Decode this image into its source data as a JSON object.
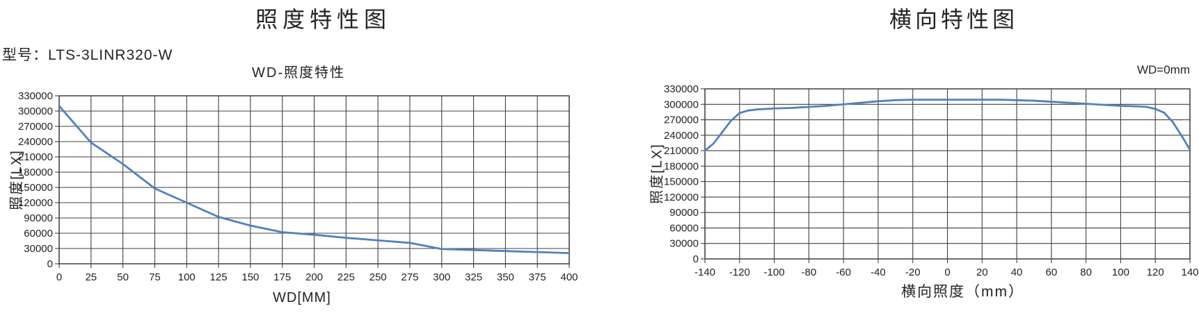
{
  "colors": {
    "curve": "#4f81bd",
    "grid": "#3f3f3f",
    "text": "#262220",
    "background": "#ffffff"
  },
  "left_chart": {
    "title": "照度特性图",
    "model_label": "型号：LTS-3LINR320-W"
  },
  "right_chart": {
    "title": "横向特性图"
  },
  "chart_data": [
    {
      "id": "wd-illuminance",
      "type": "line",
      "title": "WD-照度特性",
      "xlabel": "WD[MM]",
      "ylabel": "照度[LX]",
      "xlim": [
        0,
        400
      ],
      "ylim": [
        0,
        330000
      ],
      "grid": true,
      "legend": "none",
      "x_ticks": [
        0,
        25,
        50,
        75,
        100,
        125,
        150,
        175,
        200,
        225,
        250,
        275,
        300,
        325,
        350,
        375,
        400
      ],
      "y_ticks": [
        0,
        30000,
        60000,
        90000,
        120000,
        150000,
        180000,
        210000,
        240000,
        270000,
        300000,
        330000
      ],
      "x": [
        0,
        25,
        50,
        75,
        100,
        125,
        150,
        175,
        200,
        225,
        250,
        275,
        300,
        325,
        350,
        375,
        400
      ],
      "y": [
        310000,
        238000,
        196000,
        148000,
        120000,
        92000,
        75000,
        62000,
        57000,
        51000,
        46000,
        41000,
        29000,
        27000,
        25000,
        23000,
        21000
      ]
    },
    {
      "id": "lateral-characteristic",
      "type": "line",
      "title": "横向特性",
      "annotation": "WD=0mm",
      "xlabel": "横向照度（mm）",
      "ylabel": "照度[LX]",
      "xlim": [
        -140,
        140
      ],
      "ylim": [
        0,
        330000
      ],
      "grid": true,
      "legend": "none",
      "x_ticks": [
        -140,
        -120,
        -100,
        -80,
        -60,
        -40,
        -20,
        0,
        20,
        40,
        60,
        80,
        100,
        120,
        140
      ],
      "y_ticks": [
        0,
        30000,
        60000,
        90000,
        120000,
        150000,
        180000,
        210000,
        240000,
        270000,
        300000,
        330000
      ],
      "x": [
        -140,
        -135,
        -130,
        -125,
        -120,
        -115,
        -110,
        -100,
        -90,
        -80,
        -70,
        -60,
        -50,
        -40,
        -30,
        -20,
        -10,
        0,
        10,
        20,
        30,
        40,
        50,
        60,
        70,
        80,
        90,
        100,
        110,
        115,
        120,
        125,
        130,
        135,
        140
      ],
      "y": [
        210000,
        224000,
        246000,
        268000,
        283000,
        288000,
        290000,
        292000,
        293000,
        295000,
        297000,
        300000,
        303000,
        306000,
        308000,
        309000,
        309000,
        309000,
        309000,
        309000,
        309000,
        308000,
        307000,
        305000,
        303000,
        301000,
        299000,
        297000,
        296000,
        295000,
        291000,
        284000,
        266000,
        240000,
        212000
      ]
    }
  ]
}
